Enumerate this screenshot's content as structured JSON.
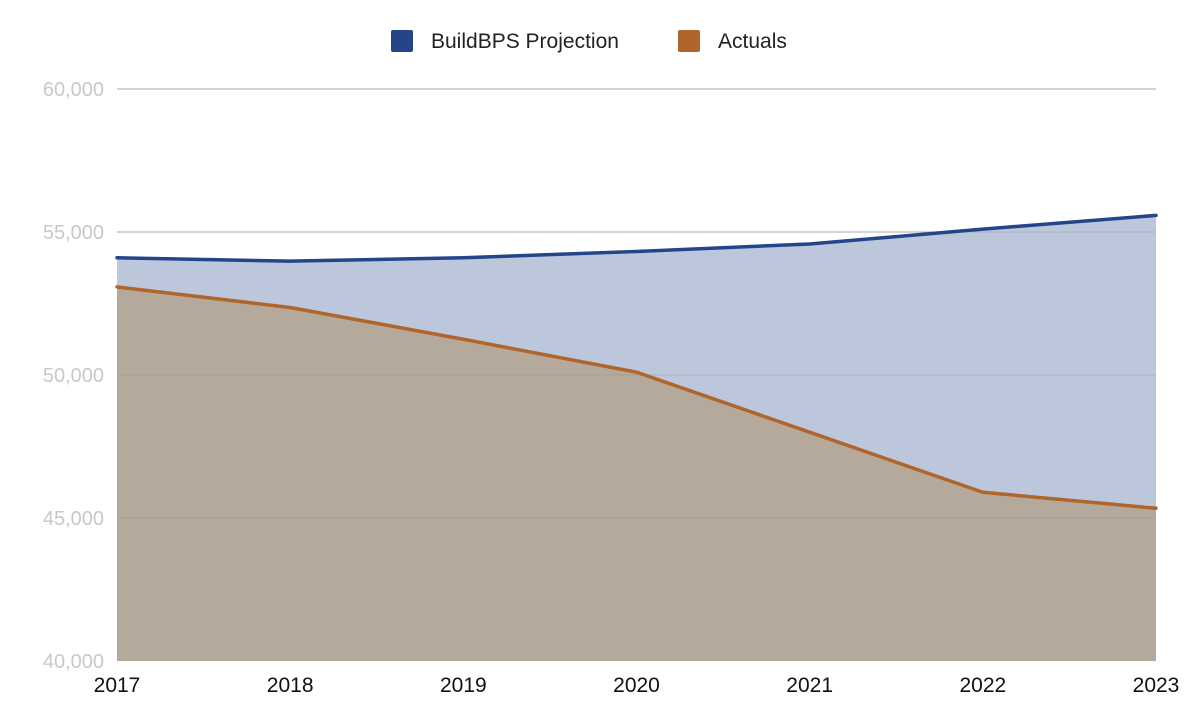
{
  "chart_data": {
    "type": "area",
    "categories": [
      "2017",
      "2018",
      "2019",
      "2020",
      "2021",
      "2022",
      "2023"
    ],
    "series": [
      {
        "name": "BuildBPS Projection",
        "values": [
          54100,
          53980,
          54100,
          54320,
          54580,
          55100,
          55580
        ],
        "color": "#24458a",
        "fill": "#bcc7db"
      },
      {
        "name": "Actuals",
        "values": [
          53080,
          52360,
          51250,
          50100,
          48000,
          45900,
          45340
        ],
        "color": "#b0652a",
        "fill": "#b5a99c"
      }
    ],
    "ylim": [
      40000,
      60000
    ],
    "yticks": [
      40000,
      45000,
      50000,
      55000,
      60000
    ],
    "ytick_labels": [
      "40,000",
      "45,000",
      "50,000",
      "55,000",
      "60,000"
    ],
    "grid": true,
    "legend": "top-center",
    "title": "",
    "xlabel": "",
    "ylabel": ""
  }
}
